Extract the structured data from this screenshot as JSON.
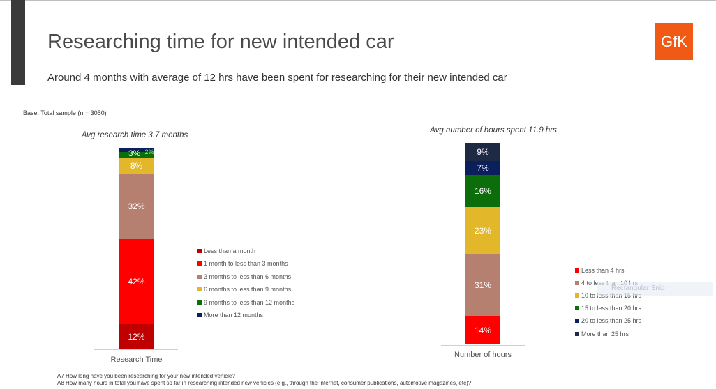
{
  "header": {
    "title": "Researching time for new intended car",
    "logo_text": "GfK",
    "subtitle": "Around 4 months with average of 12 hrs have been spent for researching for their new intended car",
    "base": "Base: Total sample (n = 3050)"
  },
  "chart_data": [
    {
      "type": "bar",
      "stacked": true,
      "title": "Avg research time 3.7 months",
      "categories": [
        "Research Time"
      ],
      "series": [
        {
          "name": "Less than a month",
          "values": [
            12
          ],
          "label": "12%",
          "color": "#c00000",
          "label_color": "#ffffff"
        },
        {
          "name": "1 month to less than 3 months",
          "values": [
            42
          ],
          "label": "42%",
          "color": "#ff0000",
          "label_color": "#ffffff"
        },
        {
          "name": "3 months to less than 6 months",
          "values": [
            32
          ],
          "label": "32%",
          "color": "#b5806f",
          "label_color": "#ffffff"
        },
        {
          "name": "6 months to less than 9 months",
          "values": [
            8
          ],
          "label": "8%",
          "color": "#e3b72a",
          "label_color": "#ffffff"
        },
        {
          "name": "9 months to less than 12 months",
          "values": [
            3
          ],
          "label": "3%",
          "color": "#0b6e0b",
          "label_color": "#ffffff"
        },
        {
          "name": "More than 12 months",
          "values": [
            2
          ],
          "label": "2%",
          "color": "#0a1f5c",
          "label_color": "#7dff7d"
        }
      ],
      "ylim": [
        0,
        100
      ],
      "legend_position": "right"
    },
    {
      "type": "bar",
      "stacked": true,
      "title": "Avg number of hours spent 11.9 hrs",
      "categories": [
        "Number of hours"
      ],
      "series": [
        {
          "name": "Less than 4 hrs",
          "values": [
            14
          ],
          "label": "14%",
          "color": "#ff0000",
          "label_color": "#ffffff"
        },
        {
          "name": "4 to less than 10 hrs",
          "values": [
            31
          ],
          "label": "31%",
          "color": "#b5806f",
          "label_color": "#ffffff"
        },
        {
          "name": "10 to less than 15 hrs",
          "values": [
            23
          ],
          "label": "23%",
          "color": "#e3b72a",
          "label_color": "#ffffff"
        },
        {
          "name": "15 to less than 20 hrs",
          "values": [
            16
          ],
          "label": "16%",
          "color": "#0b6e0b",
          "label_color": "#ffffff"
        },
        {
          "name": "20 to less than 25 hrs",
          "values": [
            7
          ],
          "label": "7%",
          "color": "#0a1f5c",
          "label_color": "#ffffff"
        },
        {
          "name": "More than 25 hrs",
          "values": [
            9
          ],
          "label": "9%",
          "color": "#1e2a44",
          "label_color": "#ffffff"
        }
      ],
      "ylim": [
        0,
        100
      ],
      "legend_position": "right"
    }
  ],
  "footnotes": {
    "a7": "A7 How long have you been researching for your new intended vehicle?",
    "a8": "A8 How many hours in total you have spent so far in researching intended new vehicles (e.g., through the Internet, consumer publications, automotive magazines, etc)?"
  },
  "overlay": {
    "snip_label": "Rectangular Snip"
  }
}
